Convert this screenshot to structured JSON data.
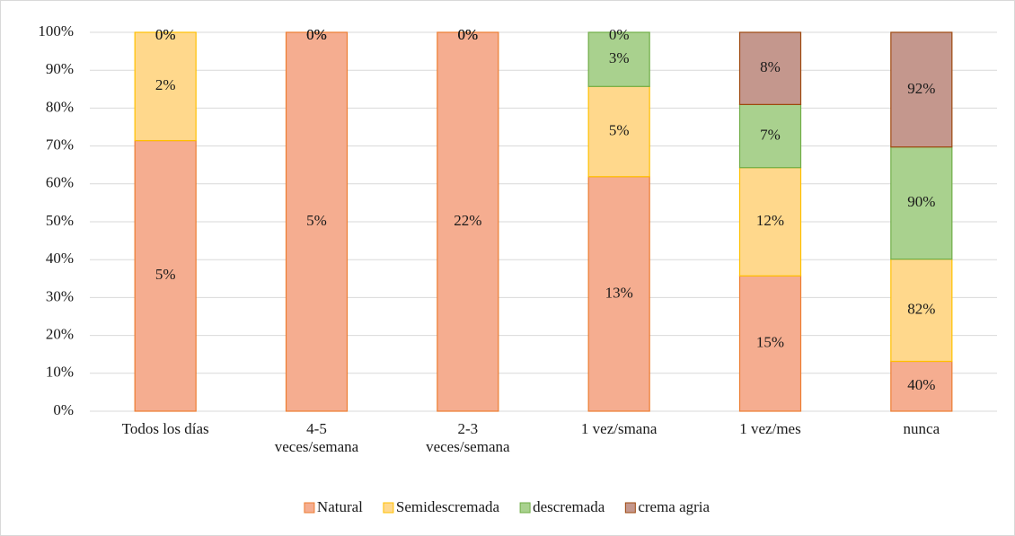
{
  "chart_data": {
    "type": "bar",
    "stacked": "percent",
    "categories": [
      "Todos los días",
      "4-5 veces/semana",
      "2-3 veces/semana",
      "1 vez/smana",
      "1 vez/mes",
      "nunca"
    ],
    "series": [
      {
        "name": "Natural",
        "color": "#f5ad90",
        "edge": "#ed7d31",
        "values": [
          5,
          5,
          22,
          13,
          15,
          40
        ],
        "value_labels": [
          "5%",
          "5%",
          "22%",
          "13%",
          "15%",
          "40%"
        ]
      },
      {
        "name": "Semidescremada",
        "color": "#ffd88c",
        "edge": "#ffc000",
        "values": [
          2,
          0,
          0,
          5,
          12,
          82
        ],
        "value_labels": [
          "2%",
          "0%",
          "0%",
          "5%",
          "12%",
          "82%"
        ]
      },
      {
        "name": "descremada",
        "color": "#a9d18e",
        "edge": "#70ad47",
        "values": [
          0,
          0,
          0,
          3,
          7,
          90
        ],
        "value_labels": [
          "0%",
          "0%",
          "0%",
          "3%",
          "7%",
          "90%"
        ]
      },
      {
        "name": "crema agria",
        "color": "#c4978d",
        "edge": "#9e480e",
        "values": [
          0,
          0,
          0,
          0,
          8,
          92
        ],
        "value_labels": [
          "0%",
          "0%",
          "0%",
          "0%",
          "8%",
          "92%"
        ]
      }
    ],
    "ylim": [
      0,
      100
    ],
    "yticks": [
      {
        "value": 0,
        "label": "0%"
      },
      {
        "value": 10,
        "label": "10%"
      },
      {
        "value": 20,
        "label": "20%"
      },
      {
        "value": 30,
        "label": "30%"
      },
      {
        "value": 40,
        "label": "40%"
      },
      {
        "value": 50,
        "label": "50%"
      },
      {
        "value": 60,
        "label": "60%"
      },
      {
        "value": 70,
        "label": "70%"
      },
      {
        "value": 80,
        "label": "80%"
      },
      {
        "value": 90,
        "label": "90%"
      },
      {
        "value": 100,
        "label": "100%"
      }
    ],
    "grid": true,
    "legend": "bottom"
  }
}
